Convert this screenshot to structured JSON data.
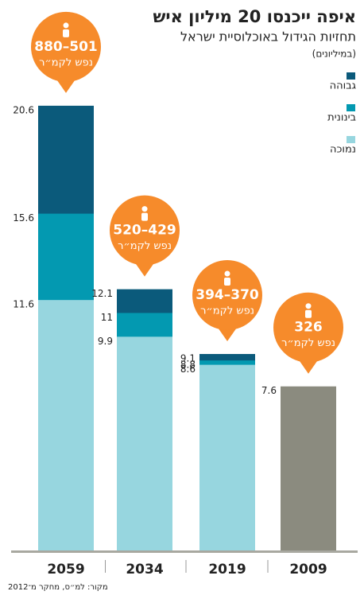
{
  "chart_data": {
    "type": "bar",
    "overlap": true,
    "title": "איפה ייכנסו 20 מיליון איש",
    "subtitle": "תחזיות הגידול באוכלוסיית ישראל",
    "unit_note": "(במיליונים)",
    "source": "מקור: למ״ס, מחקר מ־2012",
    "categories": [
      "2059",
      "2034",
      "2019",
      "2009"
    ],
    "series": [
      {
        "name": "גבוהה",
        "color": "#0b5a7b",
        "values": [
          20.6,
          12.1,
          9.1,
          null
        ]
      },
      {
        "name": "בינונית",
        "color": "#0399b1",
        "values": [
          15.6,
          11,
          8.8,
          null
        ]
      },
      {
        "name": "נמוכה",
        "color": "#97d6df",
        "values": [
          11.6,
          9.9,
          8.6,
          null
        ]
      }
    ],
    "actual": {
      "color": "#8b8b7f",
      "values": [
        null,
        null,
        null,
        7.6
      ]
    },
    "density": [
      "880–501",
      "520–429",
      "394–370",
      "326"
    ],
    "density_unit": "נפש לקמ״ר",
    "bubble_color": "#f68b2b",
    "ylim": [
      0,
      22
    ],
    "legend": "top-right"
  }
}
